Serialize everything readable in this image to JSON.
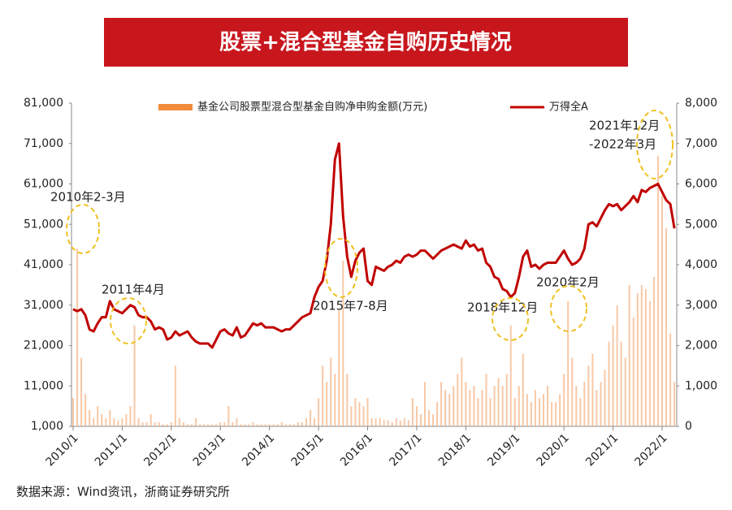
{
  "chart_data": {
    "type": "bar-line",
    "title": "股票+混合型基金自购历史情况",
    "source": "数据来源：Wind资讯，浙商证券研究所",
    "categories": [
      "2010/1",
      null,
      null,
      null,
      null,
      null,
      null,
      null,
      null,
      null,
      null,
      null,
      "2011/1",
      null,
      null,
      null,
      null,
      null,
      null,
      null,
      null,
      null,
      null,
      null,
      "2012/1",
      null,
      null,
      null,
      null,
      null,
      null,
      null,
      null,
      null,
      null,
      null,
      "2013/1",
      null,
      null,
      null,
      null,
      null,
      null,
      null,
      null,
      null,
      null,
      null,
      "2014/1",
      null,
      null,
      null,
      null,
      null,
      null,
      null,
      null,
      null,
      null,
      null,
      "2015/1",
      null,
      null,
      null,
      null,
      null,
      null,
      null,
      null,
      null,
      null,
      null,
      "2016/1",
      null,
      null,
      null,
      null,
      null,
      null,
      null,
      null,
      null,
      null,
      null,
      "2017/1",
      null,
      null,
      null,
      null,
      null,
      null,
      null,
      null,
      null,
      null,
      null,
      "2018/1",
      null,
      null,
      null,
      null,
      null,
      null,
      null,
      null,
      null,
      null,
      null,
      "2019/1",
      null,
      null,
      null,
      null,
      null,
      null,
      null,
      null,
      null,
      null,
      null,
      "2020/1",
      null,
      null,
      null,
      null,
      null,
      null,
      null,
      null,
      null,
      null,
      null,
      "2021/1",
      null,
      null,
      null,
      null,
      null,
      null,
      null,
      null,
      null,
      null,
      null,
      "2022/1",
      null,
      null,
      null
    ],
    "series": [
      {
        "name": "基金公司股票型混合型基金自购净申购金额(万元)",
        "color": "#f4a46a",
        "axis": "y",
        "values": [
          8000,
          45000,
          18000,
          9000,
          5000,
          3000,
          6000,
          4000,
          3000,
          5000,
          3000,
          2500,
          3000,
          4000,
          6000,
          26000,
          3000,
          2000,
          2000,
          4000,
          2000,
          2000,
          1500,
          1500,
          2000,
          16000,
          3000,
          2000,
          1500,
          1500,
          3000,
          1500,
          1500,
          1500,
          1500,
          1500,
          2000,
          2000,
          6000,
          2000,
          3000,
          1500,
          1500,
          1500,
          2000,
          1500,
          1500,
          1500,
          1500,
          1500,
          1500,
          2000,
          1500,
          1500,
          1500,
          2000,
          2000,
          3000,
          5000,
          3000,
          8000,
          16000,
          12000,
          18000,
          14000,
          30000,
          42000,
          14000,
          6000,
          8000,
          7000,
          6000,
          8000,
          3000,
          3000,
          3000,
          2500,
          2500,
          2000,
          3000,
          2500,
          3000,
          2500,
          8000,
          6000,
          4000,
          12000,
          5000,
          4000,
          7000,
          12000,
          10000,
          9000,
          11000,
          14000,
          18000,
          12000,
          10000,
          11000,
          8000,
          10000,
          14000,
          8000,
          11000,
          13000,
          11000,
          14000,
          26000,
          8000,
          11000,
          19000,
          9000,
          7000,
          10000,
          8000,
          9000,
          11000,
          7000,
          7000,
          9000,
          14000,
          32000,
          18000,
          11000,
          8000,
          12000,
          16000,
          19000,
          10000,
          12000,
          15000,
          22000,
          26000,
          31000,
          22000,
          18000,
          36000,
          28000,
          34000,
          36000,
          35000,
          32000,
          38000,
          68000,
          58000,
          50000,
          24000,
          12000
        ]
      },
      {
        "name": "万得全A",
        "color": "#c00000",
        "axis": "y2",
        "values": [
          2900,
          2850,
          2900,
          2750,
          2400,
          2350,
          2550,
          2700,
          2700,
          3100,
          2900,
          2850,
          2800,
          2900,
          3000,
          2950,
          2750,
          2700,
          2700,
          2600,
          2400,
          2450,
          2400,
          2150,
          2200,
          2350,
          2250,
          2300,
          2350,
          2200,
          2100,
          2050,
          2050,
          2050,
          1950,
          2150,
          2350,
          2400,
          2300,
          2250,
          2450,
          2200,
          2250,
          2400,
          2550,
          2500,
          2550,
          2450,
          2450,
          2450,
          2400,
          2350,
          2400,
          2400,
          2500,
          2600,
          2700,
          2750,
          2800,
          3200,
          3450,
          3600,
          4100,
          5000,
          6600,
          7000,
          5200,
          4200,
          3700,
          4100,
          4300,
          4400,
          3600,
          3500,
          3950,
          3900,
          3850,
          3950,
          4000,
          4100,
          4050,
          4200,
          4250,
          4200,
          4250,
          4350,
          4350,
          4250,
          4150,
          4250,
          4350,
          4400,
          4450,
          4500,
          4450,
          4400,
          4600,
          4450,
          4500,
          4350,
          4400,
          4050,
          3950,
          3700,
          3650,
          3400,
          3350,
          3200,
          3300,
          3700,
          4200,
          4350,
          3950,
          4000,
          3900,
          4000,
          4050,
          4050,
          4050,
          4200,
          4350,
          4150,
          4000,
          4050,
          4150,
          4400,
          5000,
          5050,
          4950,
          5150,
          5350,
          5500,
          5450,
          5500,
          5350,
          5450,
          5550,
          5700,
          5550,
          5850,
          5800,
          5900,
          5950,
          6000,
          5800,
          5600,
          5500,
          4900
        ]
      }
    ],
    "ylim": [
      1000,
      81000
    ],
    "yticks": [
      {
        "value": 1000,
        "label": "1,000"
      },
      {
        "value": 11000,
        "label": "11,000"
      },
      {
        "value": 21000,
        "label": "21,000"
      },
      {
        "value": 31000,
        "label": "31,000"
      },
      {
        "value": 41000,
        "label": "41,000"
      },
      {
        "value": 51000,
        "label": "51,000"
      },
      {
        "value": 61000,
        "label": "61,000"
      },
      {
        "value": 71000,
        "label": "71,000"
      },
      {
        "value": 81000,
        "label": "81,000"
      }
    ],
    "y2lim": [
      0,
      8000
    ],
    "y2ticks": [
      0,
      {
        "value": 1000,
        "label": "1,000"
      },
      {
        "value": 2000,
        "label": "2,000"
      },
      {
        "value": 3000,
        "label": "3,000"
      },
      {
        "value": 4000,
        "label": "4,000"
      },
      {
        "value": 5000,
        "label": "5,000"
      },
      {
        "value": 6000,
        "label": "6,000"
      },
      {
        "value": 7000,
        "label": "7,000"
      },
      {
        "value": 8000,
        "label": "8,000"
      }
    ],
    "legend": "top",
    "annotations": [
      "2010年2-3月",
      "2011年4月",
      "2015年7-8月",
      "2018年12月",
      "2020年2月",
      "2021年12月",
      "-2022年3月"
    ]
  }
}
